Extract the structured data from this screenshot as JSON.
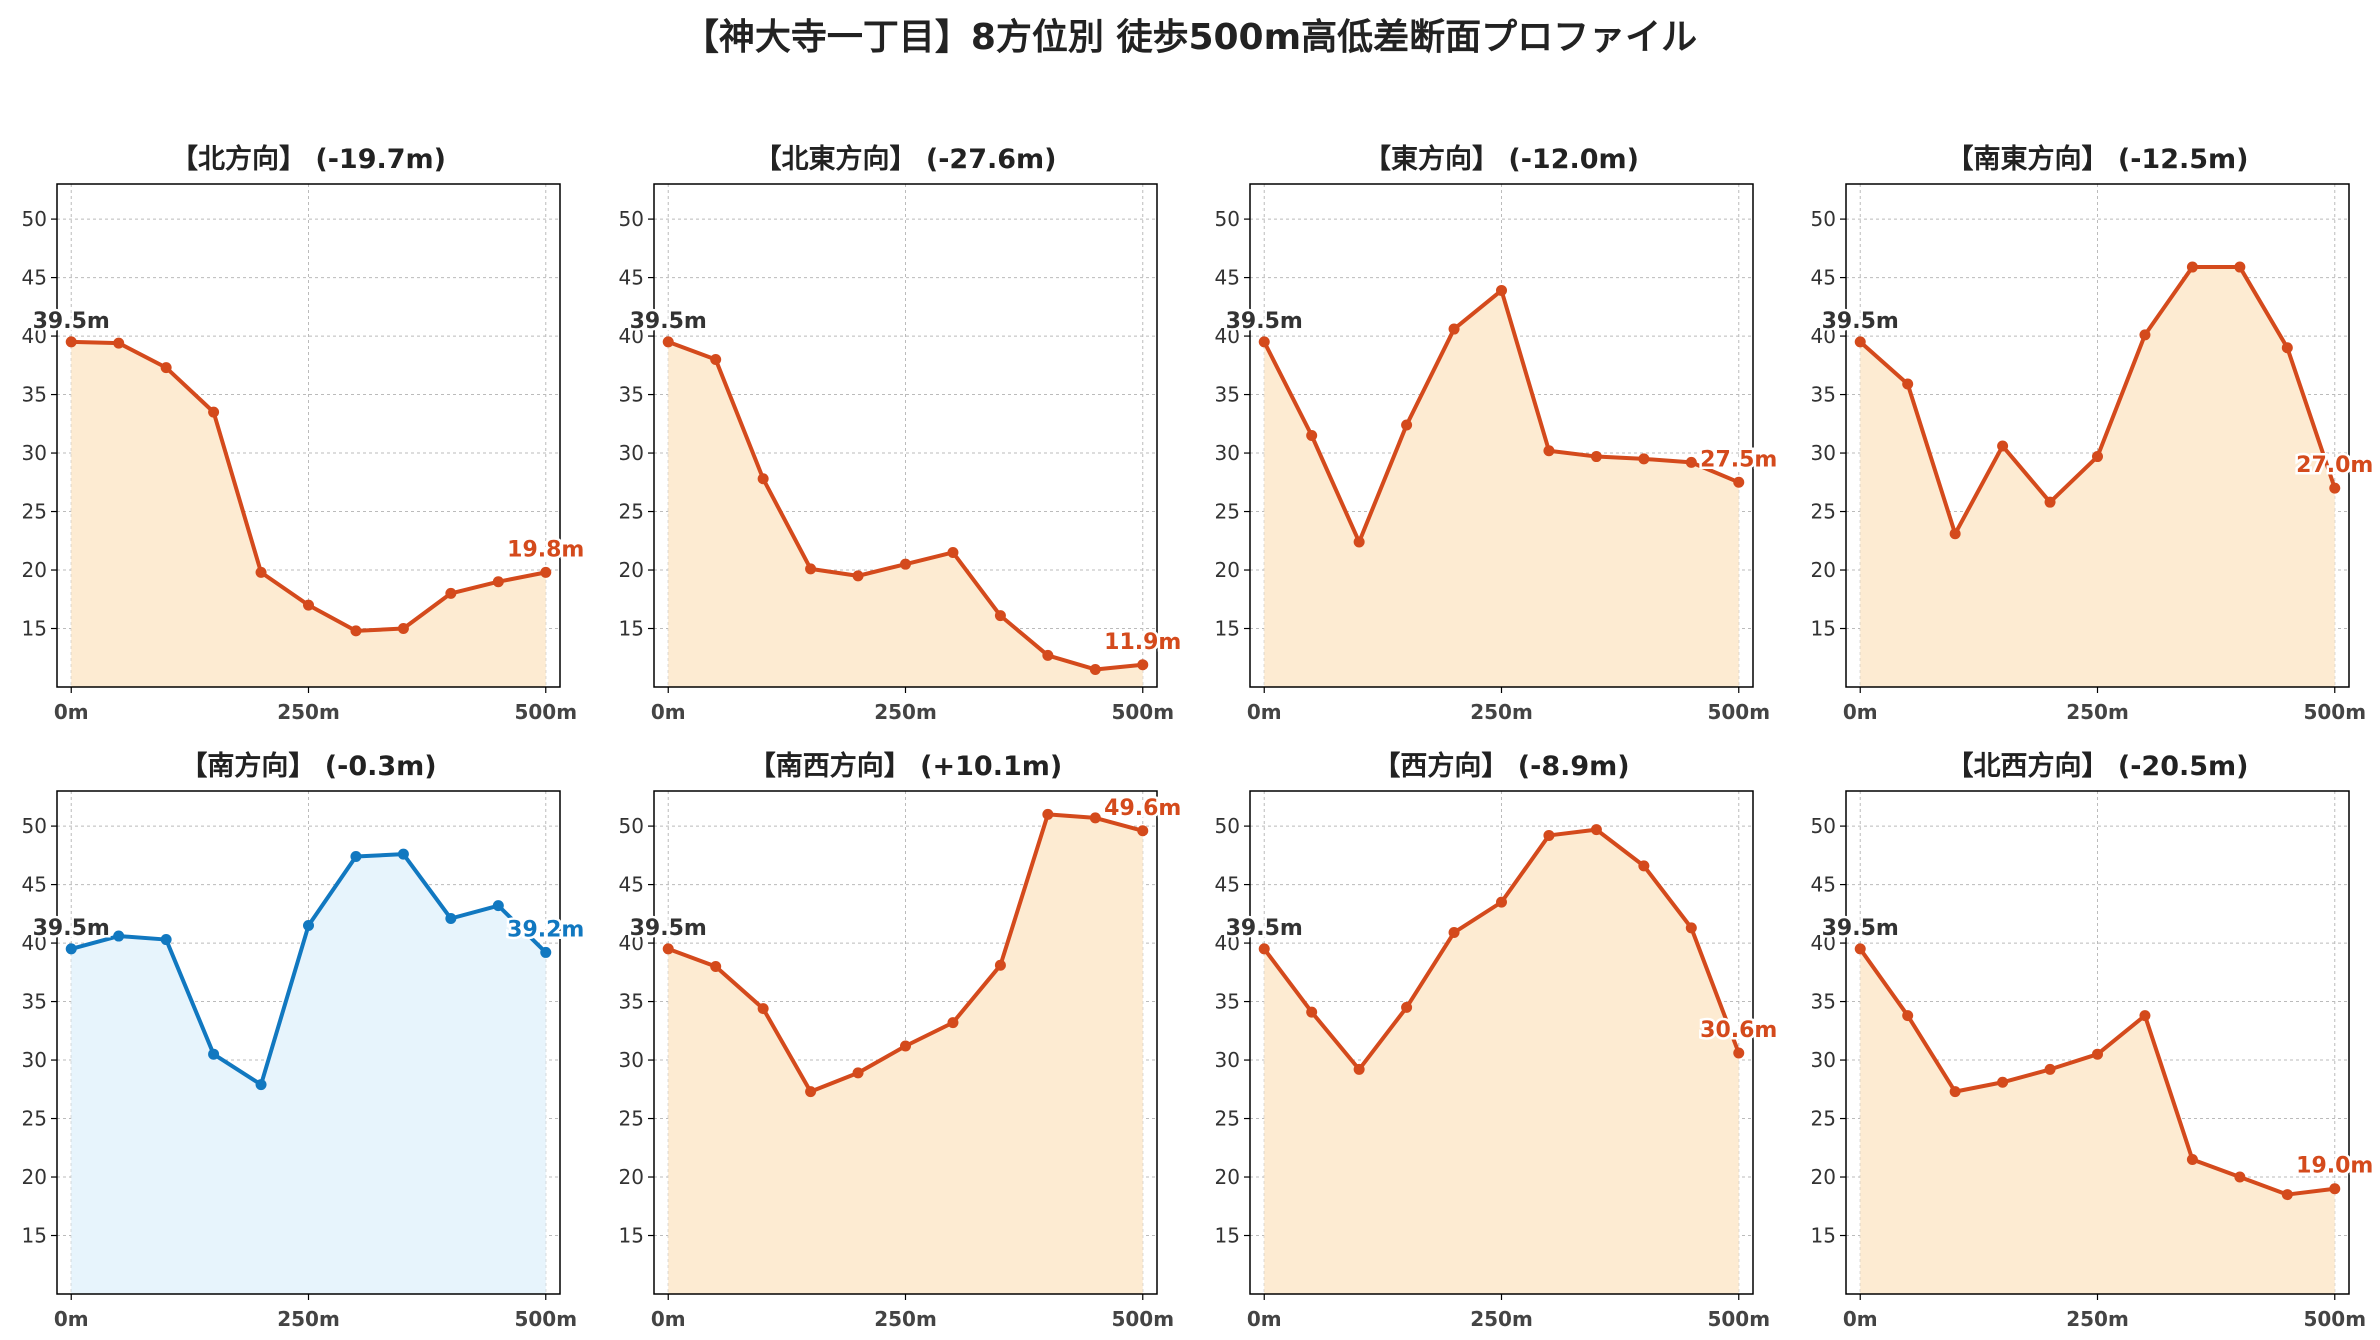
{
  "title": "【神大寺一丁目】8方位別 徒歩500m高低差断面プロファイル",
  "colors": {
    "down": "#d44a1c",
    "down_fill": "#fdebd2",
    "up": "#1178c0",
    "up_fill": "#e7f4fc",
    "start_label": "#333333",
    "grid": "#bbbbbb",
    "axis": "#000000"
  },
  "chart_data": [
    {
      "type": "line",
      "title": "【北方向】 (-19.7m)",
      "start_label": "39.5m",
      "end_label": "19.8m",
      "tone": "down",
      "x": [
        0,
        50,
        100,
        150,
        200,
        250,
        300,
        350,
        400,
        450,
        500
      ],
      "y": [
        39.5,
        39.4,
        37.3,
        33.5,
        19.8,
        17.0,
        14.8,
        15.0,
        18.0,
        19.0,
        19.8
      ],
      "xticks": [
        "0m",
        "250m",
        "500m"
      ],
      "yticks": [
        15,
        20,
        25,
        30,
        35,
        40,
        45,
        50
      ],
      "xlim": [
        -15,
        515
      ],
      "ylim": [
        10,
        53
      ],
      "grid": true
    },
    {
      "type": "line",
      "title": "【北東方向】 (-27.6m)",
      "start_label": "39.5m",
      "end_label": "11.9m",
      "tone": "down",
      "x": [
        0,
        50,
        100,
        150,
        200,
        250,
        300,
        350,
        400,
        450,
        500
      ],
      "y": [
        39.5,
        38.0,
        27.8,
        20.1,
        19.5,
        20.5,
        21.5,
        16.1,
        12.7,
        11.5,
        11.9
      ],
      "xticks": [
        "0m",
        "250m",
        "500m"
      ],
      "yticks": [
        15,
        20,
        25,
        30,
        35,
        40,
        45,
        50
      ],
      "xlim": [
        -15,
        515
      ],
      "ylim": [
        10,
        53
      ],
      "grid": true
    },
    {
      "type": "line",
      "title": "【東方向】 (-12.0m)",
      "start_label": "39.5m",
      "end_label": "27.5m",
      "tone": "down",
      "x": [
        0,
        50,
        100,
        150,
        200,
        250,
        300,
        350,
        400,
        450,
        500
      ],
      "y": [
        39.5,
        31.5,
        22.4,
        32.4,
        40.6,
        43.9,
        30.2,
        29.7,
        29.5,
        29.2,
        27.5
      ],
      "xticks": [
        "0m",
        "250m",
        "500m"
      ],
      "yticks": [
        15,
        20,
        25,
        30,
        35,
        40,
        45,
        50
      ],
      "xlim": [
        -15,
        515
      ],
      "ylim": [
        10,
        53
      ],
      "grid": true
    },
    {
      "type": "line",
      "title": "【南東方向】 (-12.5m)",
      "start_label": "39.5m",
      "end_label": "27.0m",
      "tone": "down",
      "x": [
        0,
        50,
        100,
        150,
        200,
        250,
        300,
        350,
        400,
        450,
        500
      ],
      "y": [
        39.5,
        35.9,
        23.1,
        30.6,
        25.8,
        29.7,
        40.1,
        45.9,
        45.9,
        39.0,
        27.0
      ],
      "xticks": [
        "0m",
        "250m",
        "500m"
      ],
      "yticks": [
        15,
        20,
        25,
        30,
        35,
        40,
        45,
        50
      ],
      "xlim": [
        -15,
        515
      ],
      "ylim": [
        10,
        53
      ],
      "grid": true
    },
    {
      "type": "line",
      "title": "【南方向】 (-0.3m)",
      "start_label": "39.5m",
      "end_label": "39.2m",
      "tone": "up",
      "x": [
        0,
        50,
        100,
        150,
        200,
        250,
        300,
        350,
        400,
        450,
        500
      ],
      "y": [
        39.5,
        40.6,
        40.3,
        30.5,
        27.9,
        41.5,
        47.4,
        47.6,
        42.1,
        43.2,
        39.2
      ],
      "xticks": [
        "0m",
        "250m",
        "500m"
      ],
      "yticks": [
        15,
        20,
        25,
        30,
        35,
        40,
        45,
        50
      ],
      "xlim": [
        -15,
        515
      ],
      "ylim": [
        10,
        53
      ],
      "grid": true
    },
    {
      "type": "line",
      "title": "【南西方向】 (+10.1m)",
      "start_label": "39.5m",
      "end_label": "49.6m",
      "tone": "down",
      "x": [
        0,
        50,
        100,
        150,
        200,
        250,
        300,
        350,
        400,
        450,
        500
      ],
      "y": [
        39.5,
        38.0,
        34.4,
        27.3,
        28.9,
        31.2,
        33.2,
        38.1,
        51.0,
        50.7,
        49.6
      ],
      "xticks": [
        "0m",
        "250m",
        "500m"
      ],
      "yticks": [
        15,
        20,
        25,
        30,
        35,
        40,
        45,
        50
      ],
      "xlim": [
        -15,
        515
      ],
      "ylim": [
        10,
        53
      ],
      "grid": true
    },
    {
      "type": "line",
      "title": "【西方向】 (-8.9m)",
      "start_label": "39.5m",
      "end_label": "30.6m",
      "tone": "down",
      "x": [
        0,
        50,
        100,
        150,
        200,
        250,
        300,
        350,
        400,
        450,
        500
      ],
      "y": [
        39.5,
        34.1,
        29.2,
        34.5,
        40.9,
        43.5,
        49.2,
        49.7,
        46.6,
        41.3,
        30.6
      ],
      "xticks": [
        "0m",
        "250m",
        "500m"
      ],
      "yticks": [
        15,
        20,
        25,
        30,
        35,
        40,
        45,
        50
      ],
      "xlim": [
        -15,
        515
      ],
      "ylim": [
        10,
        53
      ],
      "grid": true
    },
    {
      "type": "line",
      "title": "【北西方向】 (-20.5m)",
      "start_label": "39.5m",
      "end_label": "19.0m",
      "tone": "down",
      "x": [
        0,
        50,
        100,
        150,
        200,
        250,
        300,
        350,
        400,
        450,
        500
      ],
      "y": [
        39.5,
        33.8,
        27.3,
        28.1,
        29.2,
        30.5,
        33.8,
        21.5,
        20.0,
        18.5,
        19.0
      ],
      "xticks": [
        "0m",
        "250m",
        "500m"
      ],
      "yticks": [
        15,
        20,
        25,
        30,
        35,
        40,
        45,
        50
      ],
      "xlim": [
        -15,
        515
      ],
      "ylim": [
        10,
        53
      ],
      "grid": true
    }
  ]
}
